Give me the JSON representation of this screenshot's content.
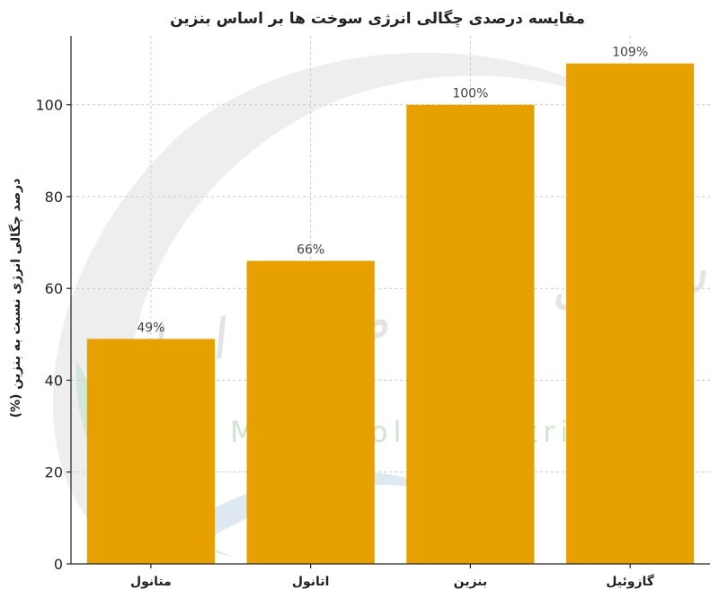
{
  "watermark": {
    "text_fa": "شرکت صنایع متانول ایران",
    "text_en": "Iran Methanol Industries Co"
  },
  "colors": {
    "bar": "#E6A000",
    "grid": "#c9c9c9",
    "axis": "#222222"
  },
  "chart_data": {
    "type": "bar",
    "title": "مقایسه درصدی چگالی انرژی سوخت ها بر اساس بنزین",
    "xlabel": "",
    "ylabel": "درصد چگالی انرژی نسبت به بنزین (%)",
    "categories": [
      "متانول",
      "اتانول",
      "بنزین",
      "گازوئیل"
    ],
    "values": [
      49,
      66,
      100,
      109
    ],
    "data_labels": [
      "49%",
      "66%",
      "100%",
      "109%"
    ],
    "ylim": [
      0,
      115
    ],
    "yticks": [
      0,
      20,
      40,
      60,
      80,
      100
    ],
    "grid": true
  }
}
